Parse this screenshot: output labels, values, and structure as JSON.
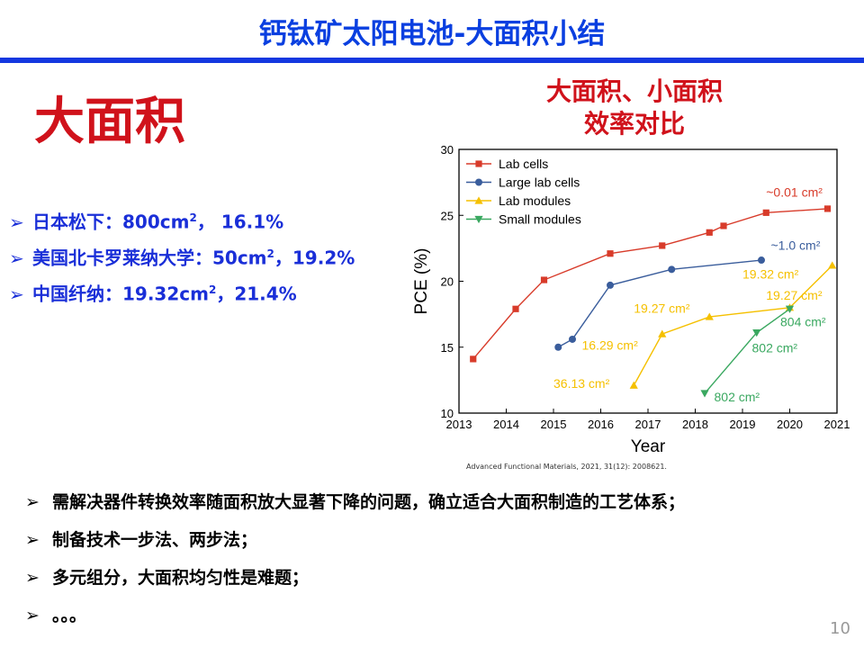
{
  "slide": {
    "title": "钙钛矿太阳电池-大面积小结",
    "big_heading": "大面积",
    "chart_heading_line1": "大面积、小面积",
    "chart_heading_line2": "效率对比",
    "page_number": "10",
    "citation": "Advanced Functional Materials, 2021, 31(12): 2008621."
  },
  "stats": [
    {
      "prefix": "日本松下：800cm",
      "sup": "2",
      "suffix": "， 16.1%"
    },
    {
      "prefix": "美国北卡罗莱纳大学：50cm",
      "sup": "2",
      "suffix": "，19.2%"
    },
    {
      "prefix": "中国纤纳：19.32cm",
      "sup": "2",
      "suffix": "，21.4%"
    }
  ],
  "bullets": [
    "需解决器件转换效率随面积放大显著下降的问题，确立适合大面积制造的工艺体系；",
    "制备技术一步法、两步法；",
    "多元组分，大面积均匀性是难题；",
    "。。。"
  ],
  "chart_data": {
    "type": "line",
    "xlabel": "Year",
    "ylabel": "PCE (%)",
    "xlim": [
      2013,
      2021
    ],
    "ylim": [
      10,
      30
    ],
    "xticks": [
      2013,
      2014,
      2015,
      2016,
      2017,
      2018,
      2019,
      2020,
      2021
    ],
    "yticks": [
      10,
      15,
      20,
      25,
      30
    ],
    "legend_position": "top-left",
    "series": [
      {
        "name": "Lab cells",
        "color": "#d83b2a",
        "marker": "square",
        "points": [
          [
            2013.3,
            14.1
          ],
          [
            2014.2,
            17.9
          ],
          [
            2014.8,
            20.1
          ],
          [
            2016.2,
            22.1
          ],
          [
            2017.3,
            22.7
          ],
          [
            2018.3,
            23.7
          ],
          [
            2018.6,
            24.2
          ],
          [
            2019.5,
            25.2
          ],
          [
            2020.8,
            25.5
          ]
        ]
      },
      {
        "name": "Large lab cells",
        "color": "#3a5d9c",
        "marker": "circle",
        "points": [
          [
            2015.1,
            15.0
          ],
          [
            2015.4,
            15.6
          ],
          [
            2016.2,
            19.7
          ],
          [
            2017.5,
            20.9
          ],
          [
            2019.4,
            21.6
          ]
        ]
      },
      {
        "name": "Lab modules",
        "color": "#f5c000",
        "marker": "triangle-up",
        "points": [
          [
            2016.7,
            12.1
          ],
          [
            2017.3,
            16.0
          ],
          [
            2018.3,
            17.3
          ],
          [
            2020.0,
            18.0
          ],
          [
            2020.9,
            21.2
          ]
        ]
      },
      {
        "name": "Small modules",
        "color": "#3aa860",
        "marker": "triangle-down",
        "points": [
          [
            2018.2,
            11.5
          ],
          [
            2019.3,
            16.1
          ],
          [
            2020.0,
            17.9
          ]
        ]
      }
    ],
    "annotations": [
      {
        "text": "~0.01 cm²",
        "x": 2019.5,
        "y": 26.4,
        "color": "#d83b2a"
      },
      {
        "text": "~1.0 cm²",
        "x": 2019.6,
        "y": 22.4,
        "color": "#3a5d9c"
      },
      {
        "text": "19.32 cm²",
        "x": 2019.0,
        "y": 20.2,
        "color": "#f5c000"
      },
      {
        "text": "19.27 cm²",
        "x": 2019.5,
        "y": 18.6,
        "color": "#f5c000"
      },
      {
        "text": "19.27 cm²",
        "x": 2016.7,
        "y": 17.6,
        "color": "#f5c000"
      },
      {
        "text": "16.29 cm²",
        "x": 2015.6,
        "y": 14.8,
        "color": "#f5c000"
      },
      {
        "text": "36.13 cm²",
        "x": 2015.0,
        "y": 11.9,
        "color": "#f5c000"
      },
      {
        "text": "804 cm²",
        "x": 2019.8,
        "y": 16.6,
        "color": "#3aa860"
      },
      {
        "text": "802 cm²",
        "x": 2019.2,
        "y": 14.6,
        "color": "#3aa860"
      },
      {
        "text": "802 cm²",
        "x": 2018.4,
        "y": 10.9,
        "color": "#3aa860"
      }
    ]
  }
}
